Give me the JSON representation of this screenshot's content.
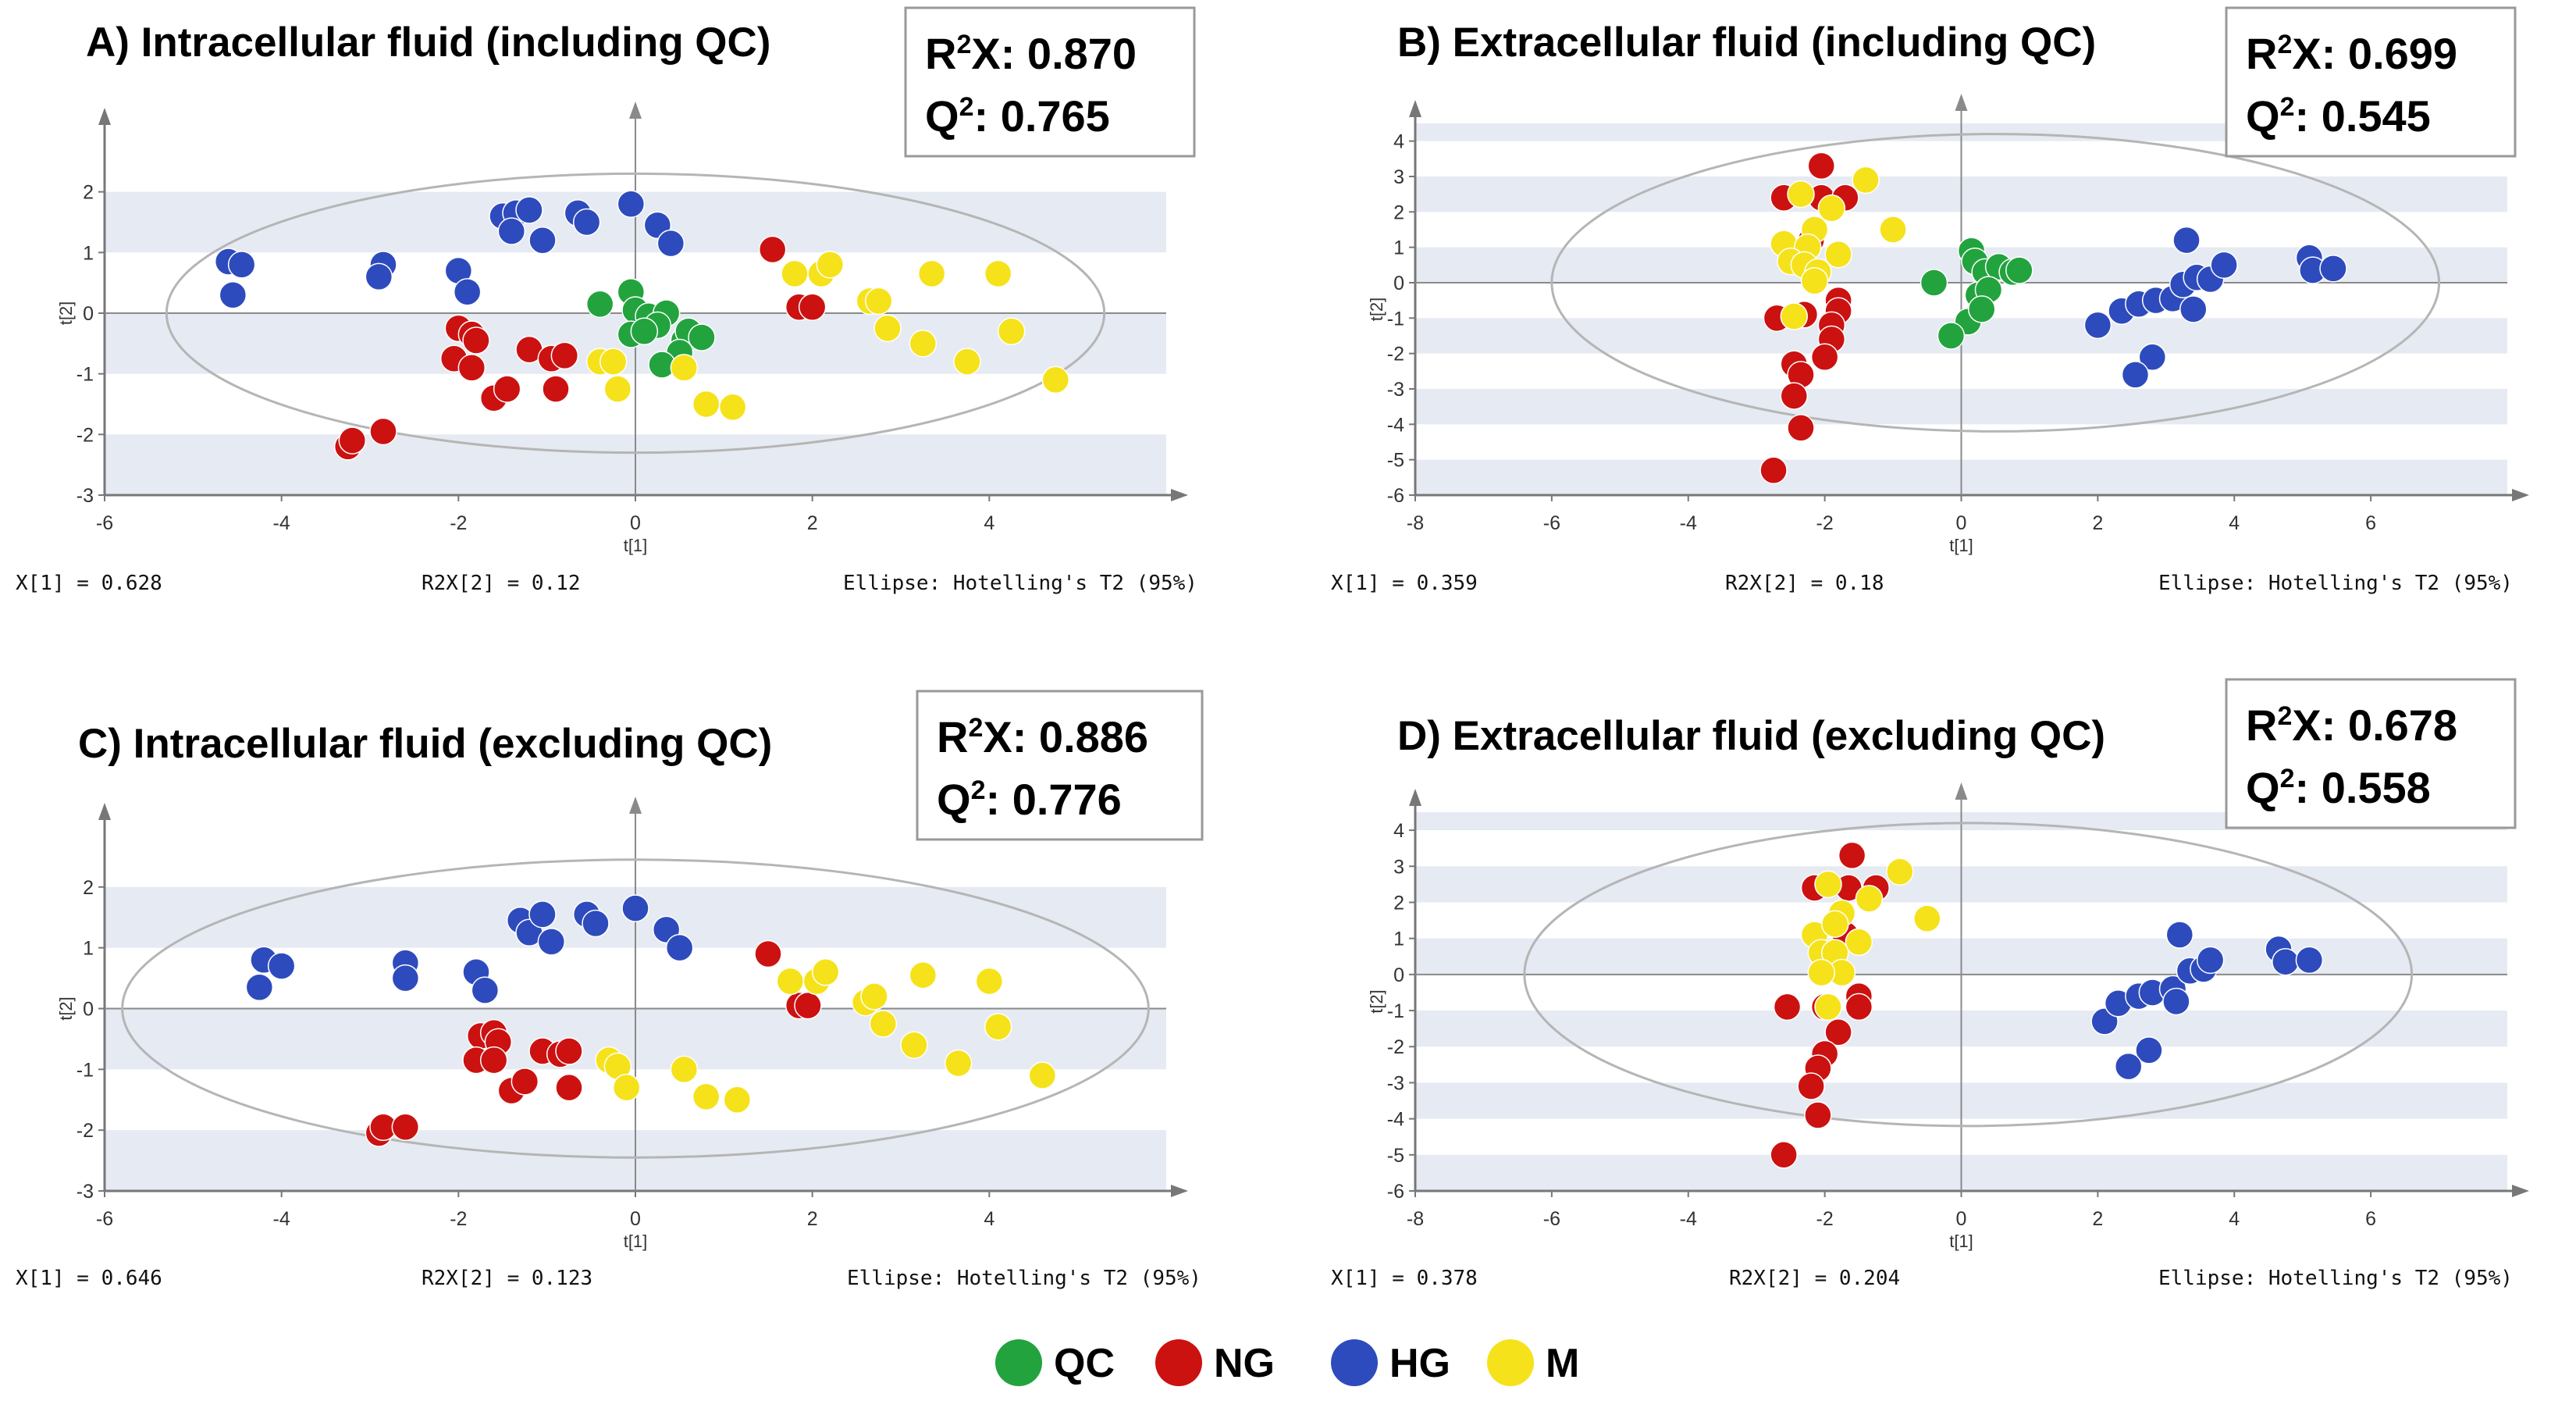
{
  "colors": {
    "QC": "#22a33e",
    "NG": "#cc1111",
    "HG": "#2e4bbd",
    "M": "#f5e21a",
    "bg_stripe": "#e6eaf2",
    "axis": "#777777",
    "ellipse": "#b5b5b5"
  },
  "legend": {
    "items": [
      {
        "key": "QC",
        "label": "QC"
      },
      {
        "key": "NG",
        "label": "NG"
      },
      {
        "key": "HG",
        "label": "HG"
      },
      {
        "key": "M",
        "label": "M"
      }
    ]
  },
  "axis_names": {
    "x": "t[1]",
    "y": "t[2]"
  },
  "chart_data": [
    {
      "type": "scatter",
      "title": "A) Intracellular fluid (including QC)",
      "stats": {
        "r2x_label": "R",
        "r2x_suffix": "X: 0.870",
        "q2_label": "Q",
        "q2_suffix": ": 0.765",
        "sup": "2"
      },
      "footer": {
        "left": "X[1] = 0.628",
        "mid": "R2X[2] = 0.12",
        "right": "Ellipse: Hotelling's T2 (95%)"
      },
      "xlabel": "t[1]",
      "ylabel": "t[2]",
      "xlim": [
        -6,
        6
      ],
      "ylim": [
        -3,
        3
      ],
      "xticks": [
        -6,
        -4,
        -2,
        0,
        2,
        4
      ],
      "yticks": [
        -3,
        -2,
        -1,
        0,
        1,
        2
      ],
      "ellipse": {
        "cx": 0,
        "cy": 0,
        "rx": 5.3,
        "ry": 2.3
      },
      "series": [
        {
          "name": "QC",
          "points": [
            [
              -0.4,
              0.15
            ],
            [
              -0.05,
              0.35
            ],
            [
              0.0,
              0.05
            ],
            [
              0.15,
              -0.05
            ],
            [
              0.35,
              0.0
            ],
            [
              0.25,
              -0.2
            ],
            [
              -0.05,
              -0.35
            ],
            [
              0.1,
              -0.3
            ],
            [
              0.55,
              -0.45
            ],
            [
              0.6,
              -0.3
            ],
            [
              0.75,
              -0.4
            ],
            [
              0.5,
              -0.65
            ],
            [
              0.3,
              -0.85
            ]
          ]
        },
        {
          "name": "NG",
          "points": [
            [
              -3.25,
              -2.2
            ],
            [
              -3.2,
              -2.1
            ],
            [
              -2.85,
              -1.95
            ],
            [
              -2.0,
              -0.25
            ],
            [
              -1.85,
              -0.35
            ],
            [
              -1.8,
              -0.45
            ],
            [
              -2.05,
              -0.75
            ],
            [
              -1.85,
              -0.9
            ],
            [
              -1.6,
              -1.4
            ],
            [
              -1.45,
              -1.25
            ],
            [
              -1.2,
              -0.6
            ],
            [
              -0.95,
              -0.75
            ],
            [
              -0.8,
              -0.7
            ],
            [
              -0.9,
              -1.25
            ],
            [
              1.55,
              1.05
            ],
            [
              1.85,
              0.1
            ],
            [
              2.0,
              0.1
            ]
          ]
        },
        {
          "name": "HG",
          "points": [
            [
              -4.6,
              0.85
            ],
            [
              -4.45,
              0.8
            ],
            [
              -4.55,
              0.3
            ],
            [
              -2.85,
              0.8
            ],
            [
              -2.9,
              0.6
            ],
            [
              -2.0,
              0.7
            ],
            [
              -1.9,
              0.35
            ],
            [
              -1.5,
              1.6
            ],
            [
              -1.35,
              1.65
            ],
            [
              -1.4,
              1.35
            ],
            [
              -1.2,
              1.7
            ],
            [
              -1.05,
              1.2
            ],
            [
              -0.65,
              1.65
            ],
            [
              -0.55,
              1.5
            ],
            [
              -0.05,
              1.8
            ],
            [
              0.25,
              1.45
            ],
            [
              0.4,
              1.15
            ]
          ]
        },
        {
          "name": "M",
          "points": [
            [
              -0.4,
              -0.8
            ],
            [
              -0.25,
              -0.8
            ],
            [
              -0.2,
              -1.25
            ],
            [
              0.55,
              -0.9
            ],
            [
              0.8,
              -1.5
            ],
            [
              1.1,
              -1.55
            ],
            [
              1.8,
              0.65
            ],
            [
              2.1,
              0.65
            ],
            [
              2.2,
              0.8
            ],
            [
              2.65,
              0.2
            ],
            [
              2.75,
              0.2
            ],
            [
              2.85,
              -0.25
            ],
            [
              3.35,
              0.65
            ],
            [
              3.25,
              -0.5
            ],
            [
              3.75,
              -0.8
            ],
            [
              4.1,
              0.65
            ],
            [
              4.25,
              -0.3
            ],
            [
              4.75,
              -1.1
            ]
          ]
        }
      ]
    },
    {
      "type": "scatter",
      "title": "B) Extracellular fluid (including QC)",
      "stats": {
        "r2x_label": "R",
        "r2x_suffix": "X: 0.699",
        "q2_label": "Q",
        "q2_suffix": ": 0.545",
        "sup": "2"
      },
      "footer": {
        "left": "X[1] = 0.359",
        "mid": "R2X[2] = 0.18",
        "right": "Ellipse: Hotelling's T2 (95%)"
      },
      "xlabel": "t[1]",
      "ylabel": "t[2]",
      "xlim": [
        -8,
        8
      ],
      "ylim": [
        -6,
        4.5
      ],
      "xticks": [
        -8,
        -6,
        -4,
        -2,
        0,
        2,
        4,
        6
      ],
      "yticks": [
        -6,
        -5,
        -4,
        -3,
        -2,
        -1,
        0,
        1,
        2,
        3,
        4
      ],
      "ellipse": {
        "cx": 0.5,
        "cy": 0,
        "rx": 6.5,
        "ry": 4.2
      },
      "series": [
        {
          "name": "QC",
          "points": [
            [
              -0.4,
              0.0
            ],
            [
              0.15,
              0.9
            ],
            [
              0.2,
              0.6
            ],
            [
              0.35,
              0.3
            ],
            [
              0.55,
              0.45
            ],
            [
              0.75,
              0.3
            ],
            [
              0.85,
              0.35
            ],
            [
              0.25,
              -0.35
            ],
            [
              0.4,
              -0.2
            ],
            [
              0.1,
              -1.1
            ],
            [
              -0.15,
              -1.5
            ],
            [
              0.3,
              -0.75
            ]
          ]
        },
        {
          "name": "NG",
          "points": [
            [
              -2.05,
              3.3
            ],
            [
              -2.6,
              2.4
            ],
            [
              -2.05,
              2.4
            ],
            [
              -1.7,
              2.4
            ],
            [
              -2.2,
              1.2
            ],
            [
              -2.7,
              -1.0
            ],
            [
              -1.8,
              -0.5
            ],
            [
              -1.8,
              -0.8
            ],
            [
              -2.3,
              -0.9
            ],
            [
              -1.9,
              -1.2
            ],
            [
              -1.9,
              -1.6
            ],
            [
              -2.0,
              -2.1
            ],
            [
              -2.45,
              -2.3
            ],
            [
              -2.35,
              -2.6
            ],
            [
              -2.45,
              -3.2
            ],
            [
              -2.35,
              -4.1
            ],
            [
              -2.75,
              -5.3
            ]
          ]
        },
        {
          "name": "HG",
          "points": [
            [
              2.0,
              -1.2
            ],
            [
              2.35,
              -0.8
            ],
            [
              2.6,
              -0.6
            ],
            [
              2.85,
              -0.5
            ],
            [
              3.1,
              -0.45
            ],
            [
              3.25,
              -0.05
            ],
            [
              3.3,
              1.2
            ],
            [
              3.45,
              0.15
            ],
            [
              3.65,
              0.1
            ],
            [
              3.85,
              0.5
            ],
            [
              3.4,
              -0.75
            ],
            [
              2.8,
              -2.1
            ],
            [
              2.55,
              -2.6
            ],
            [
              5.1,
              0.7
            ],
            [
              5.15,
              0.35
            ],
            [
              5.45,
              0.4
            ]
          ]
        },
        {
          "name": "M",
          "points": [
            [
              -2.35,
              2.5
            ],
            [
              -1.4,
              2.9
            ],
            [
              -1.9,
              2.1
            ],
            [
              -2.15,
              1.5
            ],
            [
              -2.6,
              1.1
            ],
            [
              -2.25,
              1.0
            ],
            [
              -1.8,
              0.8
            ],
            [
              -2.5,
              0.6
            ],
            [
              -2.3,
              0.5
            ],
            [
              -2.1,
              0.3
            ],
            [
              -2.15,
              0.05
            ],
            [
              -2.45,
              -0.95
            ],
            [
              -1.0,
              1.5
            ]
          ]
        }
      ]
    },
    {
      "type": "scatter",
      "title": "C) Intracellular fluid (excluding QC)",
      "stats": {
        "r2x_label": "R",
        "r2x_suffix": "X: 0.886",
        "q2_label": "Q",
        "q2_suffix": ": 0.776",
        "sup": "2"
      },
      "footer": {
        "left": "X[1] = 0.646",
        "mid": "R2X[2] = 0.123",
        "right": "Ellipse: Hotelling's T2 (95%)"
      },
      "xlabel": "t[1]",
      "ylabel": "t[2]",
      "xlim": [
        -6,
        6
      ],
      "ylim": [
        -3,
        3
      ],
      "xticks": [
        -6,
        -4,
        -2,
        0,
        2,
        4
      ],
      "yticks": [
        -3,
        -2,
        -1,
        0,
        1,
        2
      ],
      "ellipse": {
        "cx": 0,
        "cy": 0,
        "rx": 5.8,
        "ry": 2.45
      },
      "series": [
        {
          "name": "NG",
          "points": [
            [
              -2.9,
              -2.05
            ],
            [
              -2.85,
              -1.95
            ],
            [
              -2.6,
              -1.95
            ],
            [
              -1.75,
              -0.45
            ],
            [
              -1.6,
              -0.4
            ],
            [
              -1.55,
              -0.55
            ],
            [
              -1.8,
              -0.85
            ],
            [
              -1.6,
              -0.85
            ],
            [
              -1.4,
              -1.35
            ],
            [
              -1.25,
              -1.2
            ],
            [
              -1.05,
              -0.7
            ],
            [
              -0.85,
              -0.75
            ],
            [
              -0.75,
              -0.7
            ],
            [
              -0.75,
              -1.3
            ],
            [
              1.5,
              0.9
            ],
            [
              1.85,
              0.05
            ],
            [
              1.95,
              0.05
            ]
          ]
        },
        {
          "name": "HG",
          "points": [
            [
              -4.2,
              0.8
            ],
            [
              -4.0,
              0.7
            ],
            [
              -4.25,
              0.35
            ],
            [
              -2.6,
              0.75
            ],
            [
              -2.6,
              0.5
            ],
            [
              -1.8,
              0.6
            ],
            [
              -1.7,
              0.3
            ],
            [
              -1.3,
              1.45
            ],
            [
              -1.2,
              1.25
            ],
            [
              -1.05,
              1.55
            ],
            [
              -0.95,
              1.1
            ],
            [
              -0.55,
              1.55
            ],
            [
              -0.45,
              1.4
            ],
            [
              0.0,
              1.65
            ],
            [
              0.35,
              1.3
            ],
            [
              0.5,
              1.0
            ]
          ]
        },
        {
          "name": "M",
          "points": [
            [
              -0.3,
              -0.85
            ],
            [
              -0.2,
              -0.95
            ],
            [
              -0.1,
              -1.3
            ],
            [
              0.55,
              -1.0
            ],
            [
              0.8,
              -1.45
            ],
            [
              1.15,
              -1.5
            ],
            [
              1.75,
              0.45
            ],
            [
              2.05,
              0.45
            ],
            [
              2.15,
              0.6
            ],
            [
              2.6,
              0.1
            ],
            [
              2.7,
              0.2
            ],
            [
              2.8,
              -0.25
            ],
            [
              3.25,
              0.55
            ],
            [
              3.15,
              -0.6
            ],
            [
              3.65,
              -0.9
            ],
            [
              4.0,
              0.45
            ],
            [
              4.1,
              -0.3
            ],
            [
              4.6,
              -1.1
            ]
          ]
        }
      ]
    },
    {
      "type": "scatter",
      "title": "D) Extracellular fluid (excluding QC)",
      "stats": {
        "r2x_label": "R",
        "r2x_suffix": "X: 0.678",
        "q2_label": "Q",
        "q2_suffix": ": 0.558",
        "sup": "2"
      },
      "footer": {
        "left": "X[1] = 0.378",
        "mid": "R2X[2] = 0.204",
        "right": "Ellipse: Hotelling's T2 (95%)"
      },
      "xlabel": "t[1]",
      "ylabel": "t[2]",
      "xlim": [
        -8,
        8
      ],
      "ylim": [
        -6,
        4.5
      ],
      "xticks": [
        -8,
        -6,
        -4,
        -2,
        0,
        2,
        4,
        6
      ],
      "yticks": [
        -6,
        -5,
        -4,
        -3,
        -2,
        -1,
        0,
        1,
        2,
        3,
        4
      ],
      "ellipse": {
        "cx": 0.1,
        "cy": 0,
        "rx": 6.5,
        "ry": 4.2
      },
      "series": [
        {
          "name": "NG",
          "points": [
            [
              -1.6,
              3.3
            ],
            [
              -2.15,
              2.4
            ],
            [
              -1.65,
              2.4
            ],
            [
              -1.25,
              2.4
            ],
            [
              -1.7,
              1.1
            ],
            [
              -2.55,
              -0.9
            ],
            [
              -1.5,
              -0.6
            ],
            [
              -1.5,
              -0.9
            ],
            [
              -2.0,
              -0.9
            ],
            [
              -1.8,
              -1.6
            ],
            [
              -2.0,
              -2.2
            ],
            [
              -2.1,
              -2.6
            ],
            [
              -2.2,
              -3.1
            ],
            [
              -2.1,
              -3.9
            ],
            [
              -2.6,
              -5.0
            ]
          ]
        },
        {
          "name": "HG",
          "points": [
            [
              2.1,
              -1.3
            ],
            [
              2.3,
              -0.8
            ],
            [
              2.6,
              -0.6
            ],
            [
              2.8,
              -0.5
            ],
            [
              3.1,
              -0.4
            ],
            [
              3.2,
              1.1
            ],
            [
              3.35,
              0.1
            ],
            [
              3.55,
              0.15
            ],
            [
              3.65,
              0.4
            ],
            [
              3.15,
              -0.75
            ],
            [
              2.75,
              -2.1
            ],
            [
              2.45,
              -2.55
            ],
            [
              4.65,
              0.7
            ],
            [
              4.75,
              0.35
            ],
            [
              5.1,
              0.4
            ]
          ]
        },
        {
          "name": "M",
          "points": [
            [
              -1.95,
              2.5
            ],
            [
              -0.9,
              2.85
            ],
            [
              -1.35,
              2.1
            ],
            [
              -1.75,
              1.7
            ],
            [
              -2.15,
              1.1
            ],
            [
              -1.85,
              1.4
            ],
            [
              -1.5,
              0.9
            ],
            [
              -2.05,
              0.6
            ],
            [
              -1.85,
              0.6
            ],
            [
              -1.75,
              0.05
            ],
            [
              -2.05,
              0.05
            ],
            [
              -1.95,
              -0.9
            ],
            [
              -0.5,
              1.55
            ]
          ]
        }
      ]
    }
  ]
}
